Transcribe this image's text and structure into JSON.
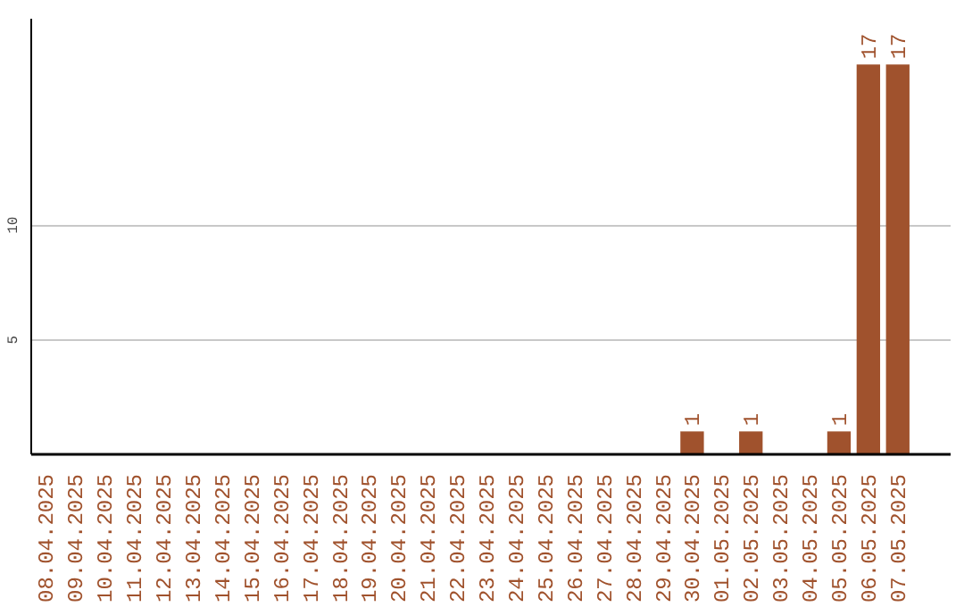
{
  "chart_data": {
    "type": "bar",
    "categories": [
      "08.04.2025",
      "09.04.2025",
      "10.04.2025",
      "11.04.2025",
      "12.04.2025",
      "13.04.2025",
      "14.04.2025",
      "15.04.2025",
      "16.04.2025",
      "17.04.2025",
      "18.04.2025",
      "19.04.2025",
      "20.04.2025",
      "21.04.2025",
      "22.04.2025",
      "23.04.2025",
      "24.04.2025",
      "25.04.2025",
      "26.04.2025",
      "27.04.2025",
      "28.04.2025",
      "29.04.2025",
      "30.04.2025",
      "01.05.2025",
      "02.05.2025",
      "03.05.2025",
      "04.05.2025",
      "05.05.2025",
      "06.05.2025",
      "07.05.2025"
    ],
    "values": [
      0,
      0,
      0,
      0,
      0,
      0,
      0,
      0,
      0,
      0,
      0,
      0,
      0,
      0,
      0,
      0,
      0,
      0,
      0,
      0,
      0,
      0,
      1,
      0,
      1,
      0,
      0,
      1,
      17,
      17
    ],
    "value_labels": [
      null,
      null,
      null,
      null,
      null,
      null,
      null,
      null,
      null,
      null,
      null,
      null,
      null,
      null,
      null,
      null,
      null,
      null,
      null,
      null,
      null,
      null,
      "1",
      null,
      "1",
      null,
      null,
      "1",
      "17",
      "17"
    ],
    "color": "#a0522d",
    "ylim": [
      0,
      19
    ],
    "yticks": [
      5,
      10
    ],
    "grid": "y"
  }
}
